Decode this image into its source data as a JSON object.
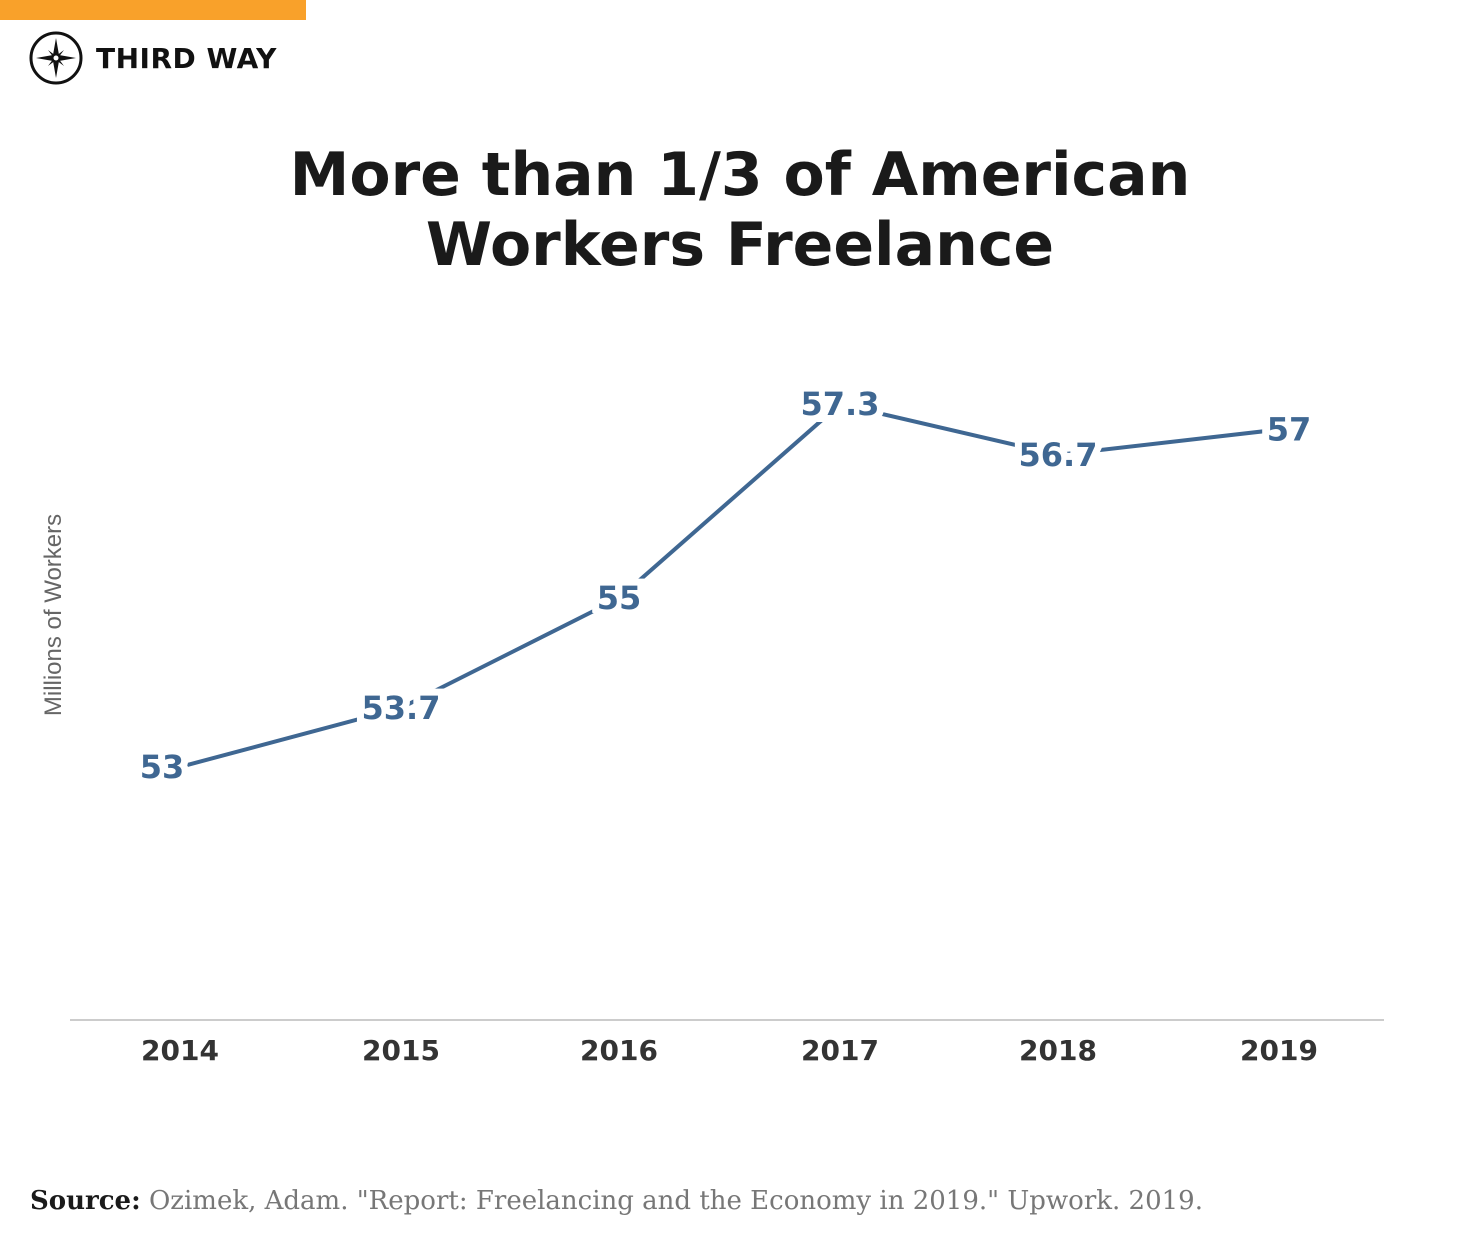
{
  "brand": {
    "name": "THIRD WAY",
    "accent": "#F9A12A"
  },
  "chart_data": {
    "type": "line",
    "title": "More than 1/3 of American Workers Freelance",
    "title_lines": [
      "More than 1/3 of American",
      "Workers Freelance"
    ],
    "xlabel": "",
    "ylabel": "Millions of Workers",
    "categories": [
      "2014",
      "2015",
      "2016",
      "2017",
      "2018",
      "2019"
    ],
    "values": [
      53,
      53.7,
      55,
      57.3,
      56.7,
      57
    ],
    "data_labels": [
      "53",
      "53.7",
      "55",
      "57.3",
      "56.7",
      "57"
    ],
    "ylim": [
      50,
      58.5
    ],
    "grid": false,
    "legend": "none",
    "color": "#3F6792"
  },
  "source": {
    "label": "Source:",
    "text": "Ozimek, Adam. \"Report: Freelancing and the Economy in 2019.\" Upwork. 2019."
  }
}
